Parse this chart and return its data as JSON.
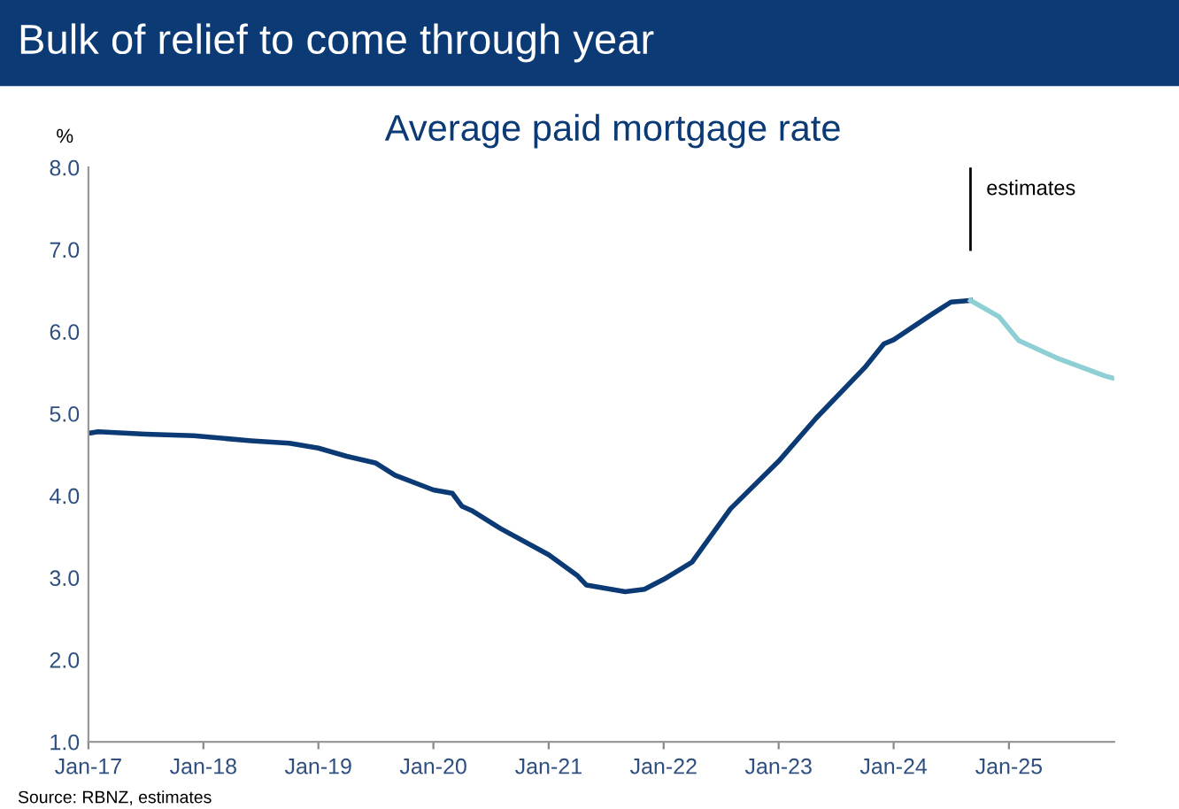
{
  "chart_data": {
    "type": "line",
    "title": "Bulk of relief to come through year",
    "subtitle": "Average paid mortgage rate",
    "ylabel": "%",
    "series": [
      {
        "color": "#0b3a75",
        "x": [
          "2017-01",
          "2017-02",
          "2017-07",
          "2017-12",
          "2018-06",
          "2018-10",
          "2019-01",
          "2019-04",
          "2019-07",
          "2019-09",
          "2020-01",
          "2020-03",
          "2020-04",
          "2020-05",
          "2020-08",
          "2021-01",
          "2021-04",
          "2021-05",
          "2021-09",
          "2021-11",
          "2022-01",
          "2022-04",
          "2022-08",
          "2023-01",
          "2023-05",
          "2023-10",
          "2023-12",
          "2024-01",
          "2024-05",
          "2024-07",
          "2024-09"
        ],
        "values": [
          4.76,
          4.78,
          4.75,
          4.73,
          4.67,
          4.64,
          4.58,
          4.48,
          4.4,
          4.25,
          4.07,
          4.03,
          3.87,
          3.82,
          3.6,
          3.28,
          3.03,
          2.91,
          2.83,
          2.86,
          2.98,
          3.19,
          3.84,
          4.42,
          4.95,
          5.56,
          5.85,
          5.9,
          6.21,
          6.36,
          6.38
        ]
      },
      {
        "color": "#8ecfd6",
        "x": [
          "2024-09",
          "2024-12",
          "2025-02",
          "2025-06",
          "2025-11",
          "2025-12"
        ],
        "values": [
          6.38,
          6.18,
          5.89,
          5.68,
          5.46,
          5.43
        ]
      }
    ],
    "xlim": [
      "2017-01",
      "2025-12"
    ],
    "xticks": [
      {
        "value": "2017-01",
        "label": "Jan-17"
      },
      {
        "value": "2018-01",
        "label": "Jan-18"
      },
      {
        "value": "2019-01",
        "label": "Jan-19"
      },
      {
        "value": "2020-01",
        "label": "Jan-20"
      },
      {
        "value": "2021-01",
        "label": "Jan-21"
      },
      {
        "value": "2022-01",
        "label": "Jan-22"
      },
      {
        "value": "2023-01",
        "label": "Jan-23"
      },
      {
        "value": "2024-01",
        "label": "Jan-24"
      },
      {
        "value": "2025-01",
        "label": "Jan-25"
      }
    ],
    "ylim": [
      1.0,
      8.0
    ],
    "yticks": [
      {
        "value": 1,
        "label": "1.0"
      },
      {
        "value": 2,
        "label": "2.0"
      },
      {
        "value": 3,
        "label": "3.0"
      },
      {
        "value": 4,
        "label": "4.0"
      },
      {
        "value": 5,
        "label": "5.0"
      },
      {
        "value": 6,
        "label": "6.0"
      },
      {
        "value": 7,
        "label": "7.0"
      },
      {
        "value": 8,
        "label": "8.0"
      }
    ],
    "ref_lines": [
      {
        "axis": "x",
        "value": "2024-09",
        "label": "estimates",
        "color": "#000000"
      }
    ],
    "grid": false,
    "legend": false,
    "marker": "none",
    "line_style": "solid",
    "annotations": [
      "Source: RBNZ, estimates"
    ]
  }
}
